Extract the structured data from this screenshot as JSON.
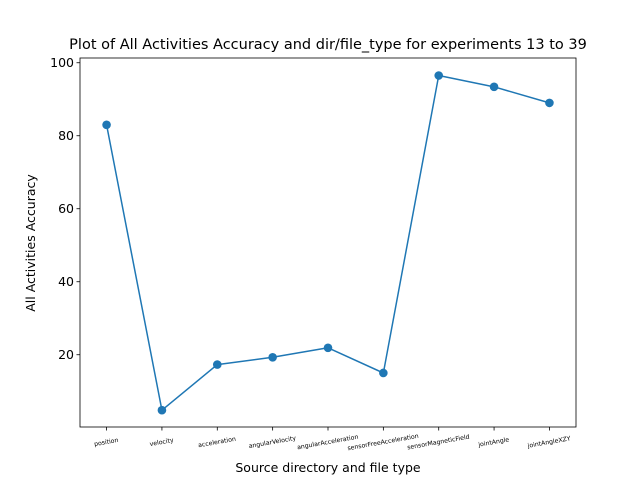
{
  "chart_data": {
    "type": "line",
    "title": "Plot of All Activities Accuracy and dir/file_type for experiments 13 to 39",
    "xlabel": "Source directory and file type",
    "ylabel": "All Activities Accuracy",
    "categories": [
      "position",
      "velocity",
      "acceleration",
      "angularVelocity",
      "angularAcceleration",
      "sensorFreeAcceleration",
      "sensorMagneticField",
      "jointAngle",
      "jointAngleXZY"
    ],
    "values": [
      83.0,
      4.8,
      17.3,
      19.3,
      21.9,
      15.0,
      96.5,
      93.4,
      89.0
    ],
    "ylim": [
      0.2,
      101.3
    ],
    "yticks": [
      20,
      40,
      60,
      80,
      100
    ],
    "xtick_rotation_deg": 10,
    "grid": false,
    "color": "#1f77b4",
    "marker": "circle"
  }
}
